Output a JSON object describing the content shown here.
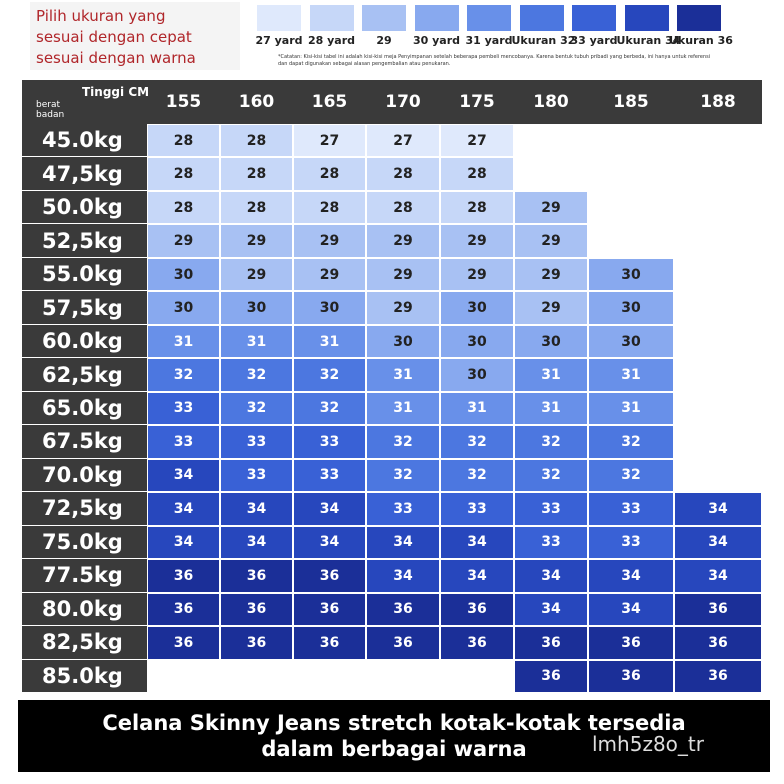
{
  "header": {
    "title_lines": [
      "Pilih ukuran yang",
      "sesuai dengan cepat",
      "sesuai dengan warna"
    ],
    "legend": [
      {
        "label": "27 yard",
        "color": "#dfe9fc"
      },
      {
        "label": "28 yard",
        "color": "#c6d7f8"
      },
      {
        "label": "29",
        "color": "#a8c1f3"
      },
      {
        "label": "30 yard",
        "color": "#88a9ef"
      },
      {
        "label": "31 yard",
        "color": "#6890e9"
      },
      {
        "label": "Ukuran 32",
        "color": "#4c77e0"
      },
      {
        "label": "33 yard",
        "color": "#3961d6"
      },
      {
        "label": "Ukuran 34",
        "color": "#2747bd"
      },
      {
        "label": "Ukuran 36",
        "color": "#1b2f98"
      }
    ],
    "note": "*Catatan: Kisi-kisi tabel ini adalah kisi-kisi meja Penyimpanan setelah beberapa pembeli mencobanya. Karena bentuk tubuh pribadi yang berbeda, ini hanya untuk referensi dan dapat digunakan sebagai alasan pengembalian atau penukaran."
  },
  "table": {
    "corner_top": "Tinggi CM",
    "corner_bottom": "berat badan",
    "columns": [
      155,
      160,
      165,
      170,
      175,
      180,
      185,
      188
    ],
    "rows": [
      {
        "label": "45.0kg",
        "cells": [
          28,
          28,
          27,
          27,
          27,
          null,
          null,
          null
        ]
      },
      {
        "label": "47,5kg",
        "cells": [
          28,
          28,
          28,
          28,
          28,
          null,
          null,
          null
        ]
      },
      {
        "label": "50.0kg",
        "cells": [
          28,
          28,
          28,
          28,
          28,
          29,
          null,
          null
        ]
      },
      {
        "label": "52,5kg",
        "cells": [
          29,
          29,
          29,
          29,
          29,
          29,
          null,
          null
        ]
      },
      {
        "label": "55.0kg",
        "cells": [
          30,
          29,
          29,
          29,
          29,
          29,
          30,
          null
        ]
      },
      {
        "label": "57,5kg",
        "cells": [
          30,
          30,
          30,
          29,
          30,
          29,
          30,
          null
        ]
      },
      {
        "label": "60.0kg",
        "cells": [
          31,
          31,
          31,
          30,
          30,
          30,
          30,
          null
        ]
      },
      {
        "label": "62,5kg",
        "cells": [
          32,
          32,
          32,
          31,
          30,
          31,
          31,
          null
        ]
      },
      {
        "label": "65.0kg",
        "cells": [
          33,
          32,
          32,
          31,
          31,
          31,
          31,
          null
        ]
      },
      {
        "label": "67.5kg",
        "cells": [
          33,
          33,
          33,
          32,
          32,
          32,
          32,
          null
        ]
      },
      {
        "label": "70.0kg",
        "cells": [
          34,
          33,
          33,
          32,
          32,
          32,
          32,
          null
        ]
      },
      {
        "label": "72,5kg",
        "cells": [
          34,
          34,
          34,
          33,
          33,
          33,
          33,
          34
        ]
      },
      {
        "label": "75.0kg",
        "cells": [
          34,
          34,
          34,
          34,
          34,
          33,
          33,
          34
        ]
      },
      {
        "label": "77.5kg",
        "cells": [
          36,
          36,
          36,
          34,
          34,
          34,
          34,
          34
        ]
      },
      {
        "label": "80.0kg",
        "cells": [
          36,
          36,
          36,
          36,
          36,
          34,
          34,
          36
        ]
      },
      {
        "label": "82,5kg",
        "cells": [
          36,
          36,
          36,
          36,
          36,
          36,
          36,
          36
        ]
      },
      {
        "label": "85.0kg",
        "cells": [
          null,
          null,
          null,
          null,
          null,
          36,
          36,
          36
        ]
      }
    ]
  },
  "footer": {
    "text": "Celana Skinny Jeans stretch kotak-kotak tersedia dalam berbagai warna",
    "watermark": "lmh5z8o_tr"
  }
}
